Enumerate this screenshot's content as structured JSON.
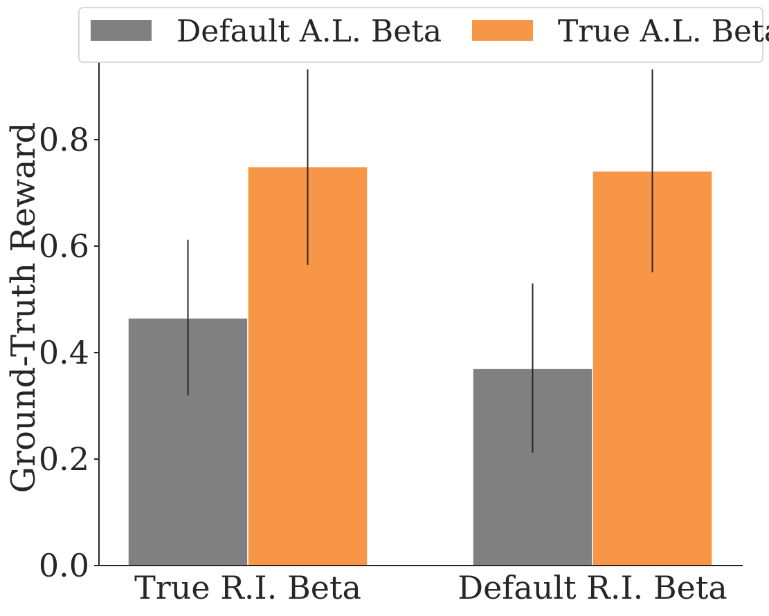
{
  "chart_data": {
    "type": "bar",
    "title": "",
    "xlabel": "",
    "ylabel": "Ground-Truth Reward",
    "ylim": [
      0.0,
      0.94
    ],
    "yticks": [
      0.0,
      0.2,
      0.4,
      0.6,
      0.8
    ],
    "ytick_labels": [
      "0.0",
      "0.2",
      "0.4",
      "0.6",
      "0.8"
    ],
    "categories": [
      "True R.I. Beta",
      "Default R.I. Beta"
    ],
    "series": [
      {
        "name": "Default A.L. Beta",
        "color": "#808080",
        "values": [
          0.465,
          0.37
        ],
        "error_low": [
          0.32,
          0.212
        ],
        "error_high": [
          0.612,
          0.53
        ]
      },
      {
        "name": "True A.L. Beta",
        "color": "#f79646",
        "values": [
          0.749,
          0.741
        ],
        "error_low": [
          0.565,
          0.551
        ],
        "error_high": [
          0.932,
          0.932
        ]
      }
    ],
    "legend": [
      "Default A.L. Beta",
      "True A.L. Beta"
    ],
    "legend_position": "top",
    "grid": false
  }
}
